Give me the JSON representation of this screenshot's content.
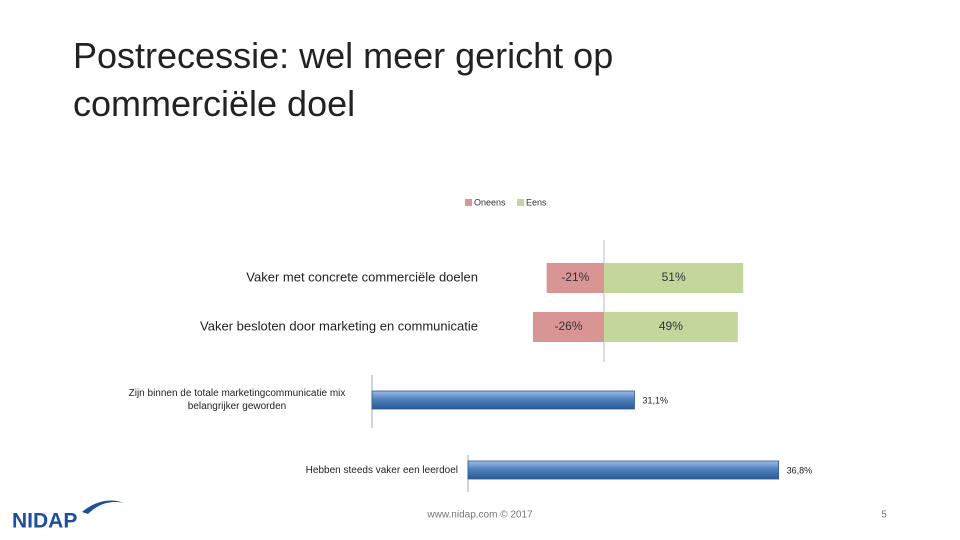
{
  "slide": {
    "title": "Postrecessie: wel meer gericht op commerciële doel",
    "footer": "www.nidap.com © 2017",
    "page_number": "5",
    "logo": "NIDAP"
  },
  "chart_data": [
    {
      "type": "diverging-bar",
      "legend": "top",
      "categories": [
        "Vaker met concrete commerciële doelen",
        "Vaker besloten door marketing en communicatie"
      ],
      "series": [
        {
          "name": "Oneens",
          "color": "#d99594",
          "values": [
            -21,
            -26
          ],
          "value_labels": [
            "-21%",
            "-26%"
          ]
        },
        {
          "name": "Eens",
          "color": "#c3d69b",
          "values": [
            51,
            49
          ],
          "value_labels": [
            "51%",
            "49%"
          ]
        }
      ]
    },
    {
      "type": "bar",
      "categories": [
        "Zijn binnen de totale marketingcommunicatie mix belangrijker geworden",
        "Hebben steeds vaker een leerdoel"
      ],
      "values": [
        31.1,
        36.8
      ],
      "value_labels": [
        "31,1%",
        "36,8%"
      ],
      "color": "#4f81bd"
    }
  ]
}
